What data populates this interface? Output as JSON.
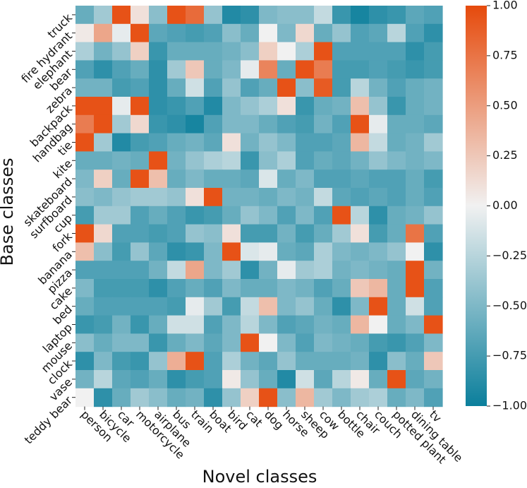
{
  "chart_data": {
    "type": "heatmap",
    "title": "",
    "xlabel": "Novel classes",
    "ylabel": "Base classes",
    "x_categories": [
      "person",
      "bicycle",
      "car",
      "motorcycle",
      "airplane",
      "bus",
      "train",
      "boat",
      "bird",
      "cat",
      "dog",
      "horse",
      "sheep",
      "cow",
      "bottle",
      "chair",
      "couch",
      "potted plant",
      "dining table",
      "tv"
    ],
    "y_categories": [
      "truck",
      "fire hydrant",
      "elephant",
      "bear",
      "zebra",
      "backpack",
      "handbag",
      "tie",
      "kite",
      "skateboard",
      "surfboard",
      "cup",
      "fork",
      "banana",
      "pizza",
      "cake",
      "bed",
      "laptop",
      "mouse",
      "clock",
      "vase",
      "teddy bear"
    ],
    "values": [
      [
        -0.6,
        -0.35,
        0.95,
        0.1,
        -0.45,
        0.95,
        0.8,
        -0.4,
        -0.9,
        -0.85,
        -0.5,
        -0.45,
        -0.45,
        -0.2,
        -0.8,
        -0.95,
        -0.85,
        -0.8,
        -0.65,
        -0.7
      ],
      [
        0.05,
        0.45,
        -0.05,
        0.95,
        -0.65,
        -0.7,
        -0.75,
        -0.7,
        -0.45,
        -0.6,
        0.0,
        -0.5,
        0.15,
        -0.6,
        -0.4,
        -0.7,
        -0.65,
        -0.25,
        -0.7,
        -0.85
      ],
      [
        -0.3,
        -0.55,
        -0.4,
        0.2,
        -0.8,
        -0.6,
        -0.6,
        -0.6,
        -0.55,
        -0.45,
        0.2,
        0.0,
        -0.3,
        0.95,
        -0.7,
        -0.7,
        -0.7,
        -0.7,
        -0.85,
        -0.75
      ],
      [
        -0.7,
        -0.85,
        -0.7,
        -0.6,
        -0.85,
        -0.35,
        0.25,
        -0.6,
        -0.5,
        -0.05,
        0.65,
        -0.6,
        0.95,
        0.7,
        -0.75,
        -0.75,
        -0.7,
        -0.75,
        -0.8,
        -0.75
      ],
      [
        -0.55,
        -0.55,
        -0.75,
        -0.7,
        -0.85,
        -0.6,
        -0.15,
        -0.7,
        -0.4,
        -0.7,
        -0.6,
        0.95,
        -0.45,
        0.9,
        -0.75,
        -0.25,
        -0.55,
        -0.7,
        -0.6,
        -0.55
      ],
      [
        0.95,
        0.95,
        -0.05,
        0.95,
        -0.85,
        -0.8,
        -0.7,
        -0.9,
        -0.5,
        -0.4,
        -0.3,
        0.1,
        -0.8,
        -0.6,
        -0.55,
        0.3,
        -0.4,
        -0.8,
        -0.6,
        -0.55
      ],
      [
        0.7,
        0.95,
        -0.35,
        0.15,
        -0.8,
        -0.85,
        -0.95,
        -0.7,
        -0.5,
        -0.5,
        -0.6,
        -0.7,
        -0.75,
        -0.55,
        -0.7,
        0.95,
        -0.05,
        -0.6,
        -0.6,
        -0.65
      ],
      [
        0.95,
        -0.35,
        -0.9,
        -0.75,
        -0.7,
        -0.6,
        -0.55,
        -0.65,
        0.1,
        -0.55,
        -0.4,
        -0.5,
        -0.7,
        -0.7,
        -0.65,
        0.35,
        -0.2,
        -0.6,
        -0.55,
        -0.35
      ],
      [
        -0.6,
        -0.6,
        -0.55,
        -0.6,
        0.95,
        -0.55,
        -0.4,
        -0.3,
        -0.25,
        -0.8,
        -0.45,
        -0.3,
        -0.7,
        -0.6,
        -0.65,
        -0.55,
        -0.4,
        -0.5,
        -0.55,
        -0.5
      ],
      [
        -0.5,
        0.2,
        -0.6,
        0.95,
        0.3,
        -0.6,
        -0.5,
        -0.6,
        -0.6,
        -0.65,
        -0.1,
        -0.6,
        -0.5,
        -0.7,
        -0.7,
        -0.65,
        -0.7,
        -0.7,
        -0.6,
        -0.75
      ],
      [
        -0.45,
        -0.5,
        -0.4,
        -0.35,
        -0.35,
        -0.4,
        0.1,
        0.95,
        -0.55,
        -0.55,
        -0.6,
        -0.5,
        -0.55,
        -0.2,
        -0.65,
        -0.7,
        -0.65,
        -0.7,
        -0.6,
        -0.7
      ],
      [
        -0.75,
        -0.35,
        -0.35,
        -0.7,
        -0.6,
        -0.7,
        -0.8,
        -0.75,
        -0.6,
        -0.4,
        -0.5,
        -0.7,
        -0.5,
        -0.7,
        0.95,
        -0.25,
        -0.85,
        -0.6,
        -0.55,
        -0.4
      ],
      [
        0.95,
        0.15,
        -0.7,
        -0.7,
        -0.75,
        -0.7,
        -0.4,
        -0.45,
        0.1,
        -0.75,
        -0.75,
        -0.55,
        -0.75,
        -0.6,
        -0.35,
        0.1,
        -0.75,
        -0.6,
        0.75,
        -0.7
      ],
      [
        0.3,
        -0.45,
        -0.75,
        -0.4,
        -0.65,
        -0.85,
        -0.8,
        -0.5,
        0.95,
        -0.1,
        -0.05,
        -0.6,
        -0.65,
        -0.3,
        -0.5,
        -0.55,
        -0.5,
        -0.4,
        0.0,
        -0.85
      ],
      [
        -0.7,
        -0.7,
        -0.7,
        -0.7,
        -0.55,
        -0.2,
        0.45,
        -0.5,
        -0.35,
        -0.85,
        -0.55,
        -0.05,
        -0.35,
        -0.3,
        -0.55,
        -0.5,
        -0.55,
        -0.6,
        0.95,
        -0.55
      ],
      [
        -0.5,
        -0.75,
        -0.75,
        -0.75,
        -0.85,
        -0.7,
        -0.6,
        -0.7,
        -0.5,
        -0.6,
        -0.6,
        -0.5,
        -0.55,
        -0.7,
        -0.6,
        0.25,
        0.35,
        -0.6,
        0.95,
        -0.7
      ],
      [
        -0.6,
        -0.7,
        -0.7,
        -0.7,
        -0.7,
        -0.75,
        -0.05,
        -0.35,
        -0.75,
        -0.2,
        0.3,
        -0.5,
        -0.4,
        -0.6,
        -0.85,
        -0.5,
        0.95,
        -0.6,
        -0.15,
        -0.7
      ],
      [
        -0.8,
        -0.75,
        -0.55,
        -0.8,
        -0.6,
        -0.15,
        -0.15,
        -0.7,
        -0.5,
        -0.25,
        -0.5,
        -0.7,
        -0.65,
        -0.55,
        -0.6,
        0.35,
        0.0,
        -0.6,
        -0.5,
        0.95
      ],
      [
        -0.45,
        -0.6,
        -0.5,
        -0.5,
        -0.8,
        -0.6,
        -0.5,
        -0.65,
        -0.5,
        0.95,
        0.0,
        -0.5,
        -0.7,
        -0.5,
        -0.55,
        -0.6,
        -0.75,
        -0.8,
        -0.7,
        -0.5
      ],
      [
        -0.85,
        -0.5,
        -0.75,
        -0.8,
        -0.4,
        0.4,
        0.95,
        -0.7,
        -0.3,
        -0.55,
        -0.65,
        -0.4,
        -0.6,
        -0.6,
        -0.6,
        -0.55,
        -0.85,
        -0.45,
        -0.6,
        0.25
      ],
      [
        -0.55,
        -0.25,
        -0.65,
        -0.7,
        -0.6,
        -0.85,
        -0.75,
        -0.7,
        0.05,
        -0.4,
        -0.6,
        -0.9,
        -0.15,
        -0.65,
        -0.25,
        0.05,
        -0.6,
        0.95,
        -0.65,
        -0.55
      ],
      [
        0.0,
        -0.85,
        -0.6,
        -0.35,
        -0.45,
        -0.6,
        -0.55,
        -0.85,
        -0.4,
        0.2,
        0.95,
        -0.45,
        0.35,
        -0.35,
        -0.5,
        -0.35,
        -0.3,
        -0.6,
        -0.5,
        -0.7
      ]
    ],
    "vmin": -1.0,
    "vmax": 1.0,
    "colorbar_ticks": [
      1.0,
      0.75,
      0.5,
      0.25,
      0.0,
      -0.25,
      -0.5,
      -0.75,
      -1.0
    ],
    "colorbar_tick_labels": [
      "1.00",
      "0.75",
      "0.50",
      "0.25",
      "0.00",
      "−0.25",
      "−0.50",
      "−0.75",
      "−1.00"
    ],
    "colormap": {
      "low": "#0b7f9c",
      "mid": "#f1f1f1",
      "high": "#e64a0c"
    }
  }
}
